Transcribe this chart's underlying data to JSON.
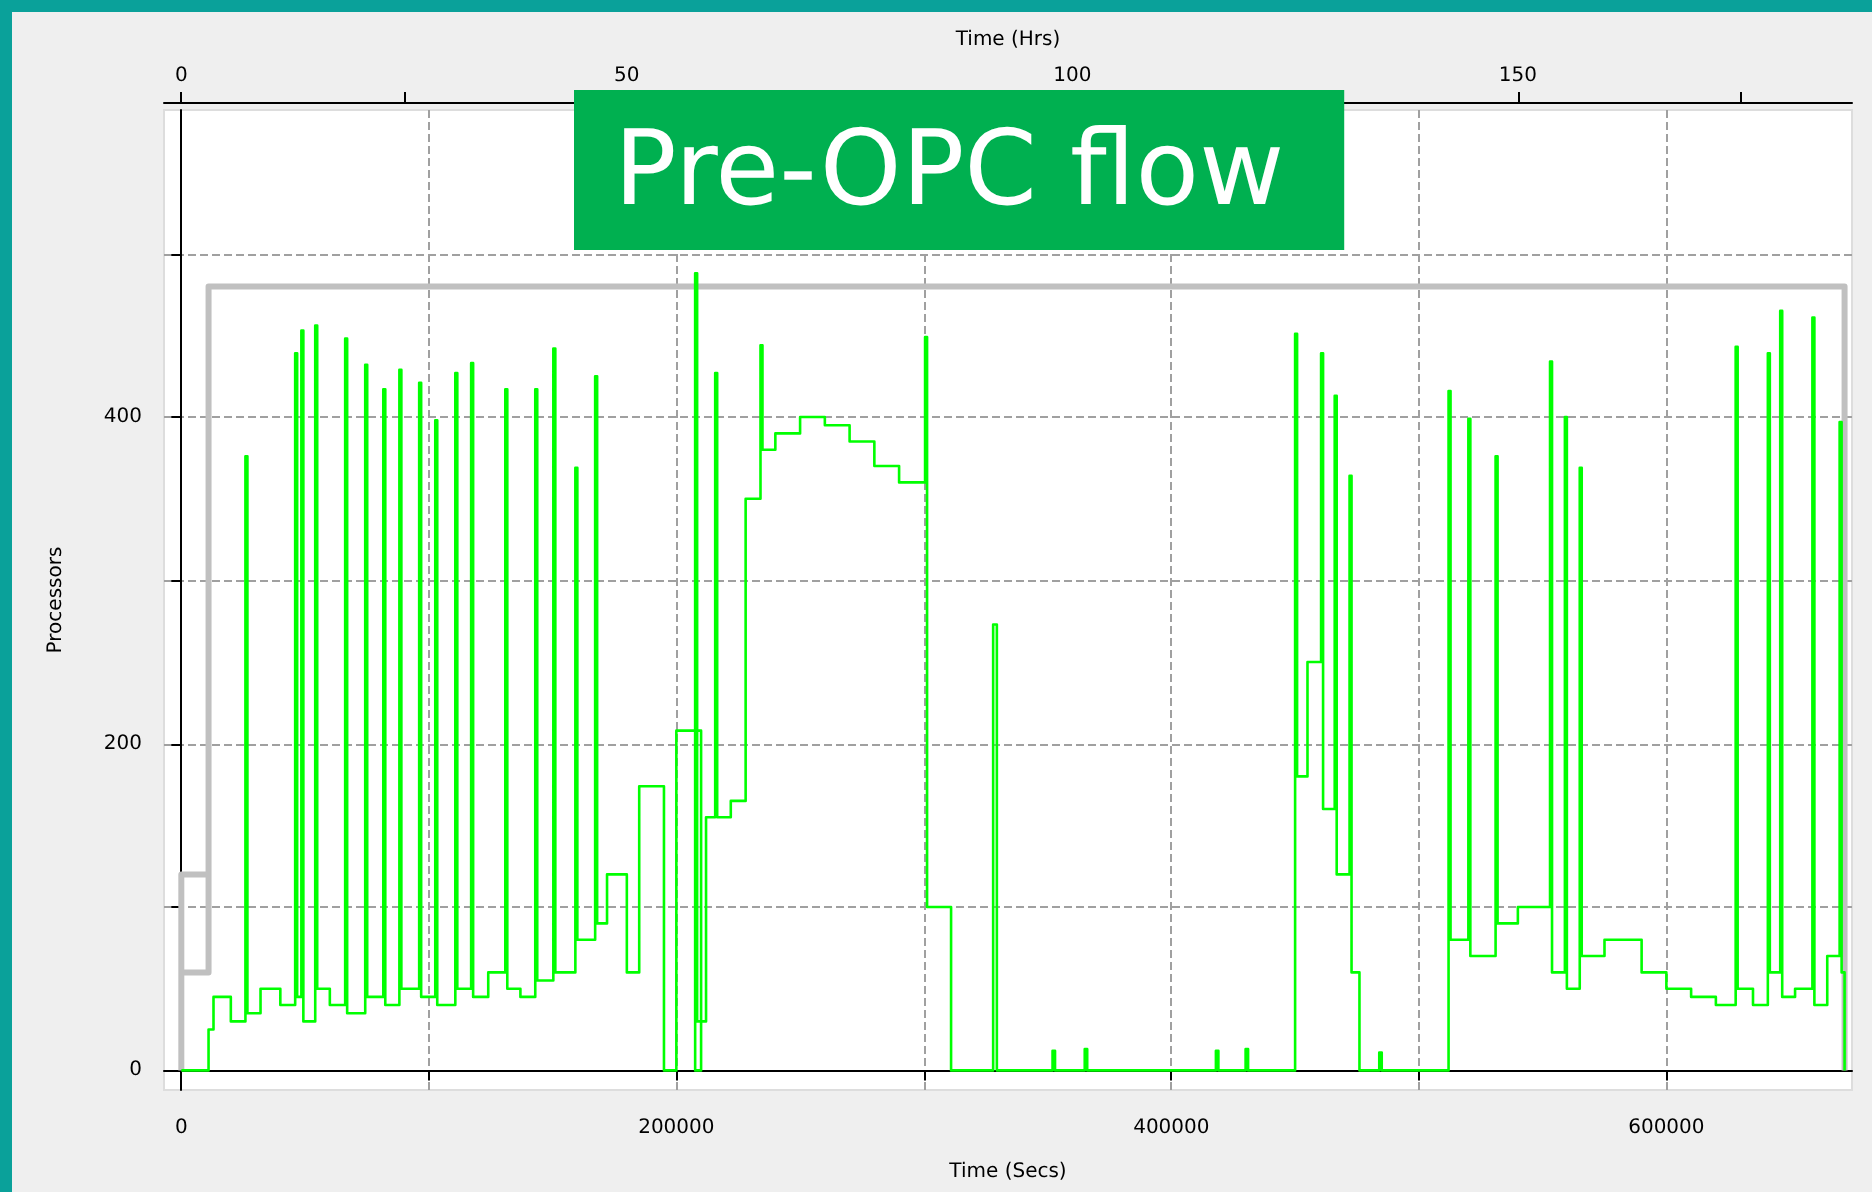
{
  "chart_data": {
    "type": "step",
    "title": "Pre-OPC flow",
    "xlabel": "Time (Secs)",
    "x2label": "Time (Hrs)",
    "ylabel": "Processors",
    "xlim": [
      -7000,
      675000
    ],
    "xticks": [
      0,
      {
        "value": 100000,
        "label": null
      },
      200000,
      {
        "value": 300000,
        "label": null
      },
      400000,
      {
        "value": 500000,
        "label": null
      },
      600000
    ],
    "x2lim": [
      -1.94,
      187.5
    ],
    "x2ticks": [
      0,
      {
        "value": 25,
        "label": null
      },
      50,
      {
        "value": 75,
        "label": null
      },
      100,
      {
        "value": 125,
        "label": null
      },
      150,
      {
        "value": 175,
        "label": null
      }
    ],
    "ylim": [
      -12,
      588
    ],
    "yticks": [
      0,
      {
        "value": 100,
        "label": null
      },
      200,
      {
        "value": 300,
        "label": null
      },
      400,
      {
        "value": 500,
        "label": null
      }
    ],
    "grid": true,
    "marker": "none",
    "series": [
      {
        "type": "line",
        "color": "#c0c0c0",
        "x": [
          0,
          0,
          11000,
          11000,
          0,
          0,
          11000,
          11000,
          672000,
          672000
        ],
        "values": [
          0,
          120,
          120,
          60,
          60,
          120,
          120,
          480,
          480,
          0
        ]
      },
      {
        "color": "#00ff00",
        "x": [
          0,
          11000,
          13000,
          20000,
          25900,
          26700,
          32000,
          40000,
          46000,
          46800,
          48500,
          49300,
          54100,
          54900,
          60000,
          66200,
          67000,
          74300,
          75100,
          81600,
          82400,
          88100,
          88900,
          96100,
          96900,
          102600,
          103400,
          110700,
          111500,
          117100,
          117900,
          124000,
          130900,
          131700,
          137000,
          143000,
          143800,
          150300,
          151100,
          159200,
          160000,
          167200,
          168000,
          172000,
          180000,
          185000,
          195000,
          200000,
          210000,
          207600,
          208400,
          212000,
          215700,
          216500,
          222000,
          228000,
          234000,
          234800,
          240000,
          250000,
          260000,
          270000,
          280000,
          290000,
          300500,
          301300,
          311000,
          328000,
          329500,
          352000,
          353000,
          365000,
          366000,
          418000,
          419000,
          430000,
          431000,
          450000,
          450800,
          455000,
          460500,
          461300,
          466000,
          466800,
          472000,
          472800,
          476000,
          484000,
          485000,
          512000,
          512800,
          520000,
          520800,
          531000,
          531800,
          540000,
          553000,
          553800,
          559000,
          559800,
          565000,
          565800,
          575000,
          590000,
          600000,
          610000,
          620000,
          628000,
          628800,
          635000,
          641000,
          641800,
          646000,
          646800,
          652000,
          659000,
          659800,
          665000,
          670000,
          670800,
          672000
        ],
        "values": [
          0,
          25,
          45,
          30,
          376,
          35,
          50,
          40,
          439,
          45,
          453,
          30,
          456,
          50,
          40,
          448,
          35,
          432,
          45,
          417,
          40,
          429,
          50,
          421,
          45,
          398,
          40,
          427,
          50,
          433,
          45,
          60,
          417,
          50,
          45,
          417,
          55,
          442,
          60,
          369,
          80,
          425,
          90,
          120,
          60,
          174,
          0,
          208,
          0,
          488,
          30,
          155,
          427,
          155,
          165,
          350,
          444,
          380,
          390,
          400,
          395,
          385,
          370,
          360,
          449,
          100,
          0,
          273,
          0,
          12,
          0,
          13,
          0,
          12,
          0,
          13,
          0,
          451,
          180,
          250,
          439,
          160,
          413,
          120,
          364,
          60,
          0,
          11,
          0,
          416,
          80,
          399,
          70,
          376,
          90,
          100,
          434,
          60,
          400,
          50,
          369,
          70,
          80,
          60,
          50,
          45,
          40,
          443,
          50,
          40,
          439,
          60,
          465,
          45,
          50,
          461,
          40,
          70,
          397,
          60,
          0
        ]
      }
    ]
  }
}
